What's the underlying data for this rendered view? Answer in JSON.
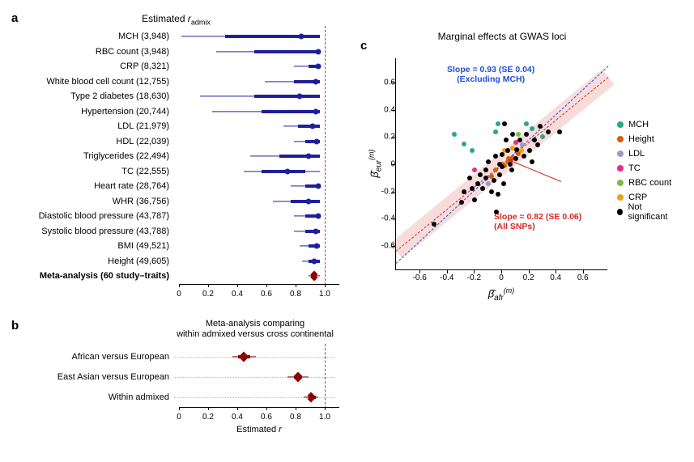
{
  "panelA": {
    "label": "a",
    "title_html": "Estimated <span class='r-ital'>r</span><sub>admix</sub>",
    "xmin": 0,
    "xmax": 1.1,
    "ref": 1.0,
    "ticks": [
      0,
      0.2,
      0.4,
      0.6,
      0.8,
      1.0
    ],
    "color": "#1f1f9e",
    "meta_color": "#8b0000",
    "rows": [
      {
        "label": "MCH (3,948)",
        "lo2": 0.05,
        "lo1": 0.35,
        "pt": 0.87,
        "hi1": 1.0,
        "hi2": 1.0,
        "bold": false
      },
      {
        "label": "RBC count (3,948)",
        "lo2": 0.29,
        "lo1": 0.55,
        "pt": 0.99,
        "hi1": 1.0,
        "hi2": 1.0,
        "bold": false
      },
      {
        "label": "CRP (8,321)",
        "lo2": 0.82,
        "lo1": 0.92,
        "pt": 0.99,
        "hi1": 1.0,
        "hi2": 1.0,
        "bold": false
      },
      {
        "label": "White blood cell count (12,755)",
        "lo2": 0.62,
        "lo1": 0.82,
        "pt": 0.97,
        "hi1": 1.0,
        "hi2": 1.0,
        "bold": false
      },
      {
        "label": "Type 2 diabetes (18,630)",
        "lo2": 0.18,
        "lo1": 0.55,
        "pt": 0.86,
        "hi1": 1.0,
        "hi2": 1.0,
        "bold": false
      },
      {
        "label": "Hypertension (20,744)",
        "lo2": 0.26,
        "lo1": 0.6,
        "pt": 0.97,
        "hi1": 1.0,
        "hi2": 1.0,
        "bold": false
      },
      {
        "label": "LDL (21,979)",
        "lo2": 0.75,
        "lo1": 0.85,
        "pt": 0.95,
        "hi1": 1.0,
        "hi2": 1.0,
        "bold": false
      },
      {
        "label": "HDL (22,039)",
        "lo2": 0.82,
        "lo1": 0.9,
        "pt": 0.98,
        "hi1": 1.0,
        "hi2": 1.0,
        "bold": false
      },
      {
        "label": "Triglycerides (22,494)",
        "lo2": 0.52,
        "lo1": 0.72,
        "pt": 0.92,
        "hi1": 1.0,
        "hi2": 1.0,
        "bold": false
      },
      {
        "label": "TC (22,555)",
        "lo2": 0.48,
        "lo1": 0.6,
        "pt": 0.78,
        "hi1": 0.9,
        "hi2": 1.0,
        "bold": false
      },
      {
        "label": "Heart rate (28,764)",
        "lo2": 0.8,
        "lo1": 0.9,
        "pt": 0.99,
        "hi1": 1.0,
        "hi2": 1.0,
        "bold": false
      },
      {
        "label": "WHR (36,756)",
        "lo2": 0.68,
        "lo1": 0.8,
        "pt": 0.92,
        "hi1": 1.0,
        "hi2": 1.0,
        "bold": false
      },
      {
        "label": "Diastolic blood pressure (43,787)",
        "lo2": 0.82,
        "lo1": 0.9,
        "pt": 0.99,
        "hi1": 1.0,
        "hi2": 1.0,
        "bold": false
      },
      {
        "label": "Systolic blood pressure (43,788)",
        "lo2": 0.82,
        "lo1": 0.9,
        "pt": 0.97,
        "hi1": 1.0,
        "hi2": 1.0,
        "bold": false
      },
      {
        "label": "BMI (49,521)",
        "lo2": 0.86,
        "lo1": 0.92,
        "pt": 0.98,
        "hi1": 1.0,
        "hi2": 1.0,
        "bold": false
      },
      {
        "label": "Height (49,605)",
        "lo2": 0.88,
        "lo1": 0.92,
        "pt": 0.96,
        "hi1": 1.0,
        "hi2": 1.0,
        "bold": false
      },
      {
        "label": "Meta-analysis (60 study–traits)",
        "lo2": 0.92,
        "lo1": 0.94,
        "pt": 0.96,
        "hi1": 0.98,
        "hi2": 1.0,
        "bold": true,
        "meta": true
      }
    ]
  },
  "panelB": {
    "label": "b",
    "title": "Meta-analysis comparing\nwithin admixed versus cross continental",
    "xmin": 0,
    "xmax": 1.1,
    "ref": 1.0,
    "ticks": [
      0,
      0.2,
      0.4,
      0.6,
      0.8,
      1.0
    ],
    "xlabel_html": "Estimated <span class='r-ital'>r</span>",
    "color": "#8b0000",
    "rows": [
      {
        "label": "African versus European",
        "lo2": 0.4,
        "lo1": 0.44,
        "pt": 0.48,
        "hi1": 0.52,
        "hi2": 0.56
      },
      {
        "label": "East Asian versus European",
        "lo2": 0.78,
        "lo1": 0.82,
        "pt": 0.85,
        "hi1": 0.88,
        "hi2": 0.92
      },
      {
        "label": "Within admixed",
        "lo2": 0.89,
        "lo1": 0.92,
        "pt": 0.94,
        "hi1": 0.97,
        "hi2": 0.99
      }
    ]
  },
  "panelC": {
    "label": "c",
    "title": "Marginal effects at GWAS loci",
    "xlim": [
      -0.78,
      0.78
    ],
    "ylim": [
      -0.78,
      0.78
    ],
    "ticks": [
      -0.6,
      -0.4,
      -0.2,
      0,
      0.2,
      0.4,
      0.6
    ],
    "xlabel_html": "β̂<sub>afr</sub><sup>(m)</sup>",
    "ylabel_html": "β̂<sub>eur</sub><sup>(m)</sup>",
    "reg_all": {
      "slope": 0.82,
      "color": "#d62728",
      "label": "Slope = 0.82 (SE 0.06)\n(All SNPs)"
    },
    "reg_excl": {
      "slope": 0.93,
      "color": "#1f4fd6",
      "label": "Slope = 0.93 (SE 0.04)\n(Excluding MCH)"
    },
    "legend": [
      {
        "label": "MCH",
        "color": "#2ca58d"
      },
      {
        "label": "Height",
        "color": "#d95f02"
      },
      {
        "label": "LDL",
        "color": "#9e9ac8"
      },
      {
        "label": "TC",
        "color": "#e7298a"
      },
      {
        "label": "RBC count",
        "color": "#7fbc41"
      },
      {
        "label": "CRP",
        "color": "#f0a30a"
      },
      {
        "label": "Not significant",
        "color": "#000000"
      }
    ],
    "points": [
      {
        "x": -0.35,
        "y": 0.22,
        "c": "#2ca58d"
      },
      {
        "x": -0.28,
        "y": 0.15,
        "c": "#2ca58d"
      },
      {
        "x": -0.22,
        "y": 0.1,
        "c": "#2ca58d"
      },
      {
        "x": -0.05,
        "y": 0.24,
        "c": "#2ca58d"
      },
      {
        "x": -0.03,
        "y": 0.3,
        "c": "#2ca58d"
      },
      {
        "x": 0.18,
        "y": 0.3,
        "c": "#2ca58d"
      },
      {
        "x": 0.22,
        "y": 0.26,
        "c": "#2ca58d"
      },
      {
        "x": 0.3,
        "y": 0.2,
        "c": "#2ca58d"
      },
      {
        "x": 0.04,
        "y": 0.02,
        "c": "#d95f02"
      },
      {
        "x": 0.08,
        "y": 0.05,
        "c": "#d95f02"
      },
      {
        "x": 0.12,
        "y": 0.08,
        "c": "#d95f02"
      },
      {
        "x": 0.02,
        "y": -0.01,
        "c": "#d95f02"
      },
      {
        "x": -0.05,
        "y": -0.04,
        "c": "#d95f02"
      },
      {
        "x": -0.08,
        "y": -0.09,
        "c": "#d95f02"
      },
      {
        "x": 0.0,
        "y": 0.0,
        "c": "#d95f02"
      },
      {
        "x": 0.05,
        "y": 0.04,
        "c": "#d95f02"
      },
      {
        "x": -0.1,
        "y": -0.14,
        "c": "#9e9ac8"
      },
      {
        "x": 0.15,
        "y": 0.14,
        "c": "#9e9ac8"
      },
      {
        "x": -0.2,
        "y": -0.04,
        "c": "#e7298a"
      },
      {
        "x": 0.1,
        "y": 0.16,
        "c": "#e7298a"
      },
      {
        "x": 0.12,
        "y": 0.22,
        "c": "#7fbc41"
      },
      {
        "x": 0.14,
        "y": 0.1,
        "c": "#f0a30a"
      },
      {
        "x": 0.08,
        "y": 0.12,
        "c": "#f0a30a"
      },
      {
        "x": 0.02,
        "y": 0.1,
        "c": "#f0a30a"
      },
      {
        "x": -0.5,
        "y": -0.44,
        "c": "#000"
      },
      {
        "x": -0.28,
        "y": -0.2,
        "c": "#000"
      },
      {
        "x": -0.24,
        "y": -0.1,
        "c": "#000"
      },
      {
        "x": -0.2,
        "y": -0.26,
        "c": "#000"
      },
      {
        "x": -0.16,
        "y": -0.08,
        "c": "#000"
      },
      {
        "x": -0.14,
        "y": -0.18,
        "c": "#000"
      },
      {
        "x": -0.12,
        "y": -0.04,
        "c": "#000"
      },
      {
        "x": -0.1,
        "y": 0.02,
        "c": "#000"
      },
      {
        "x": -0.08,
        "y": -0.2,
        "c": "#000"
      },
      {
        "x": -0.02,
        "y": -0.08,
        "c": "#000"
      },
      {
        "x": -0.04,
        "y": -0.35,
        "c": "#000"
      },
      {
        "x": 0.03,
        "y": 0.18,
        "c": "#000"
      },
      {
        "x": 0.02,
        "y": 0.3,
        "c": "#000"
      },
      {
        "x": 0.06,
        "y": 0.0,
        "c": "#000"
      },
      {
        "x": 0.08,
        "y": 0.22,
        "c": "#000"
      },
      {
        "x": 0.1,
        "y": 0.04,
        "c": "#000"
      },
      {
        "x": 0.16,
        "y": 0.06,
        "c": "#000"
      },
      {
        "x": 0.18,
        "y": 0.22,
        "c": "#000"
      },
      {
        "x": 0.2,
        "y": 0.1,
        "c": "#000"
      },
      {
        "x": 0.22,
        "y": 0.02,
        "c": "#000"
      },
      {
        "x": 0.24,
        "y": 0.18,
        "c": "#000"
      },
      {
        "x": 0.28,
        "y": 0.28,
        "c": "#000"
      },
      {
        "x": 0.42,
        "y": 0.24,
        "c": "#000"
      },
      {
        "x": 0.01,
        "y": -0.14,
        "c": "#000"
      },
      {
        "x": 0.0,
        "y": 0.07,
        "c": "#000"
      },
      {
        "x": -0.06,
        "y": -0.12,
        "c": "#000"
      },
      {
        "x": -0.02,
        "y": 0.0,
        "c": "#000"
      },
      {
        "x": 0.07,
        "y": -0.04,
        "c": "#000"
      },
      {
        "x": 0.11,
        "y": 0.11,
        "c": "#000"
      },
      {
        "x": -0.03,
        "y": -0.22,
        "c": "#000"
      },
      {
        "x": -0.18,
        "y": -0.14,
        "c": "#000"
      },
      {
        "x": -0.22,
        "y": -0.18,
        "c": "#000"
      },
      {
        "x": 0.0,
        "y": -0.02,
        "c": "#000"
      },
      {
        "x": 0.04,
        "y": 0.1,
        "c": "#000"
      },
      {
        "x": 0.13,
        "y": 0.18,
        "c": "#000"
      },
      {
        "x": -0.05,
        "y": 0.06,
        "c": "#000"
      },
      {
        "x": 0.26,
        "y": 0.14,
        "c": "#000"
      },
      {
        "x": 0.34,
        "y": 0.24,
        "c": "#000"
      },
      {
        "x": -0.3,
        "y": -0.28,
        "c": "#000"
      },
      {
        "x": -0.12,
        "y": -0.1,
        "c": "#000"
      }
    ]
  }
}
